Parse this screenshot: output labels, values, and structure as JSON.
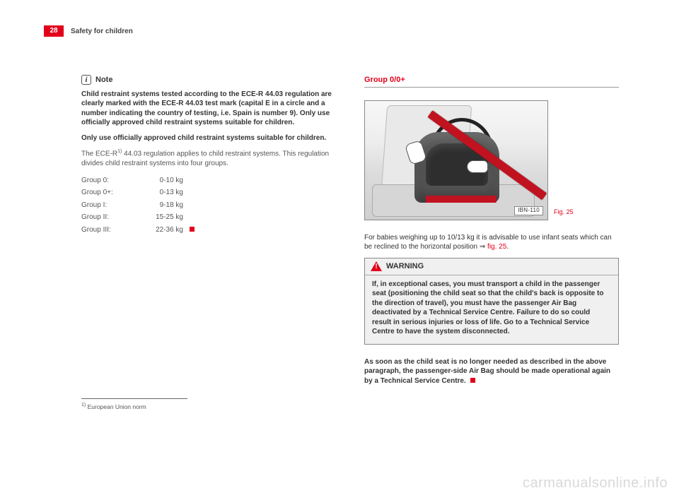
{
  "page": {
    "number": "28",
    "chapter": "Safety for children"
  },
  "left": {
    "note_label": "Note",
    "para1_bold": "Child restraint systems tested according to the ECE-R 44.03 regulation are clearly marked with the ECE-R 44.03 test mark (capital E in a circle and a number indicating the country of testing, i.e. Spain is number 9). Only use officially approved child restraint systems suitable for children.",
    "para2_bold": "Only use officially approved child restraint systems suitable for children.",
    "para3_pre": "The ECE-R",
    "para3_sup": "1)",
    "para3_post": " 44.03 regulation applies to child restraint systems. This regulation divides child restraint systems into four groups.",
    "groups": [
      {
        "name": "Group 0:",
        "weight": "0-10 kg"
      },
      {
        "name": "Group 0+:",
        "weight": "0-13 kg"
      },
      {
        "name": "Group I:",
        "weight": "9-18 kg"
      },
      {
        "name": "Group II:",
        "weight": "15-25 kg"
      },
      {
        "name": "Group III:",
        "weight": "22-36 kg"
      }
    ],
    "footnote_marker": "1)",
    "footnote_text": " European Union norm"
  },
  "right": {
    "section_title": "Group 0/0+",
    "fig_label": "IBN-110",
    "fig_caption": "Fig. 25",
    "body_text": "For babies weighing up to 10/13 kg it is advisable to use infant seats which can be reclined to the horizontal position ",
    "body_arrow": "⇒",
    "body_ref": " fig. 25",
    "body_period": ".",
    "warning_title": "WARNING",
    "warning_text": "If, in exceptional cases, you must transport a child in the passenger seat (positioning the child seat so that the child's back is opposite to the direction of travel), you must have the passenger Air Bag deactivated by a Technical Service Centre. Failure to do so could result in serious injuries or loss of life. Go to a Technical Service Centre to have the system disconnected.",
    "closing_text": "As soon as the child seat is no longer needed as described in the above paragraph, the passenger-side Air Bag should be made operational again by a Technical Service Centre."
  },
  "watermark": "carmanualsonline.info",
  "colors": {
    "accent": "#e2001a",
    "text": "#333333",
    "muted": "#555555",
    "box_bg": "#f0f0f0",
    "rule": "#888888"
  }
}
